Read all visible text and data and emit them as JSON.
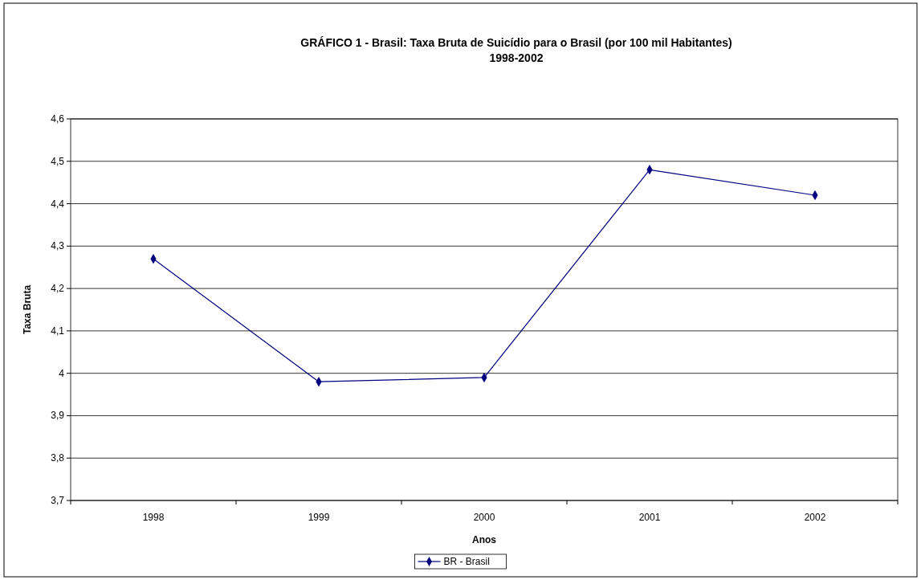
{
  "chart_data": {
    "type": "line",
    "title": "GRÁFICO 1 - Brasil: Taxa Bruta de Suicídio para o Brasil (por 100 mil Habitantes)",
    "subtitle": "1998-2002",
    "xlabel": "Anos",
    "ylabel": "Taxa Bruta",
    "categories": [
      "1998",
      "1999",
      "2000",
      "2001",
      "2002"
    ],
    "series": [
      {
        "name": "BR - Brasil",
        "color": "#000080",
        "values": [
          4.27,
          3.98,
          3.99,
          4.48,
          4.42
        ]
      }
    ],
    "ylim": [
      3.7,
      4.6
    ],
    "yticks": [
      {
        "value": 3.7,
        "label": "3,7"
      },
      {
        "value": 3.8,
        "label": "3,8"
      },
      {
        "value": 3.9,
        "label": "3,9"
      },
      4,
      {
        "value": 4.1,
        "label": "4,1"
      },
      {
        "value": 4.2,
        "label": "4,2"
      },
      {
        "value": 4.3,
        "label": "4,3"
      },
      {
        "value": 4.4,
        "label": "4,4"
      },
      {
        "value": 4.5,
        "label": "4,5"
      },
      {
        "value": 4.6,
        "label": "4,6"
      }
    ],
    "grid": "y",
    "legend": "bottom",
    "marker": "diamond",
    "line_style": "solid"
  }
}
